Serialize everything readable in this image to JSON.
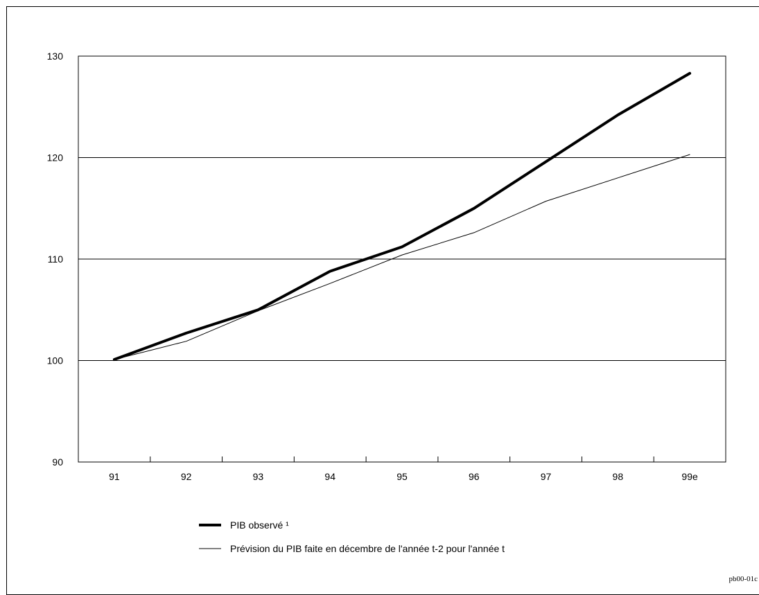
{
  "chart_data": {
    "type": "line",
    "categories": [
      "91",
      "92",
      "93",
      "94",
      "95",
      "96",
      "97",
      "98",
      "99e"
    ],
    "series": [
      {
        "name": "PIB observé ¹",
        "values": [
          100.1,
          102.7,
          105.0,
          108.8,
          111.2,
          115.0,
          119.6,
          124.2,
          128.3
        ],
        "color": "#000000",
        "style": "thick"
      },
      {
        "name": "Prévision du PIB faite en décembre de l'année t-2 pour l'année t",
        "values": [
          100.1,
          101.9,
          104.9,
          107.6,
          110.4,
          112.6,
          115.7,
          118.0,
          120.3
        ],
        "color": "#000000",
        "style": "thin"
      }
    ],
    "yticks": [
      "90",
      "100",
      "110",
      "120",
      "130"
    ],
    "ylim": [
      90,
      130
    ],
    "grid": "horizontal",
    "legend": "bottom"
  },
  "footer": {
    "code": "pb00-01c"
  }
}
